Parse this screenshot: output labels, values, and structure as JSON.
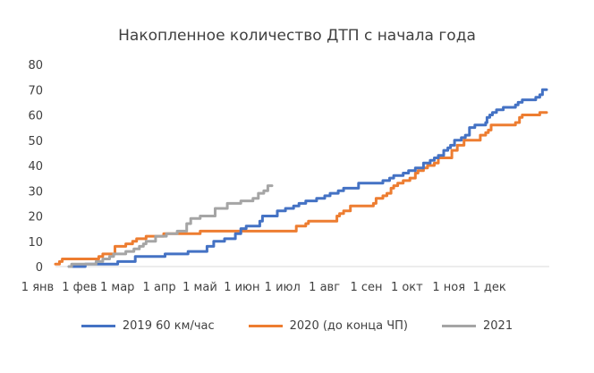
{
  "chart_data": {
    "type": "line",
    "title": "Накопленное количество ДТП с начала года",
    "xlabel": "",
    "ylabel": "",
    "ylim": [
      0,
      80
    ],
    "xlim": [
      0,
      365
    ],
    "y_ticks": [
      "0",
      "10",
      "20",
      "30",
      "40",
      "50",
      "60",
      "70",
      "80"
    ],
    "x_tick_labels": [
      "1 янв",
      "1 фев",
      "1 мар",
      "1 апр",
      "1 май",
      "1 июн",
      "1 июл",
      "1 авг",
      "1 сен",
      "1 окт",
      "1 ноя",
      "1 дек"
    ],
    "x_tick_days": [
      0,
      31,
      59,
      90,
      120,
      151,
      181,
      212,
      243,
      273,
      304,
      334
    ],
    "grid": false,
    "legend_position": "bottom",
    "series": [
      {
        "name": "2019 60 км/час",
        "color": "#4472C4",
        "points": [
          [
            10,
            0
          ],
          [
            22,
            1
          ],
          [
            43,
            1
          ],
          [
            46,
            2
          ],
          [
            59,
            4
          ],
          [
            78,
            4
          ],
          [
            81,
            5
          ],
          [
            96,
            5
          ],
          [
            98,
            6
          ],
          [
            110,
            6
          ],
          [
            112,
            8
          ],
          [
            117,
            10
          ],
          [
            125,
            11
          ],
          [
            133,
            13
          ],
          [
            137,
            15
          ],
          [
            141,
            16
          ],
          [
            150,
            16
          ],
          [
            151,
            18
          ],
          [
            153,
            20
          ],
          [
            162,
            20
          ],
          [
            164,
            22
          ],
          [
            170,
            23
          ],
          [
            176,
            24
          ],
          [
            180,
            25
          ],
          [
            185,
            26
          ],
          [
            193,
            27
          ],
          [
            199,
            28
          ],
          [
            203,
            29
          ],
          [
            209,
            30
          ],
          [
            213,
            31
          ],
          [
            222,
            31
          ],
          [
            224,
            33
          ],
          [
            239,
            33
          ],
          [
            242,
            34
          ],
          [
            247,
            35
          ],
          [
            250,
            36
          ],
          [
            257,
            37
          ],
          [
            261,
            38
          ],
          [
            266,
            39
          ],
          [
            272,
            41
          ],
          [
            277,
            42
          ],
          [
            280,
            43
          ],
          [
            283,
            44
          ],
          [
            287,
            46
          ],
          [
            290,
            47
          ],
          [
            292,
            48
          ],
          [
            295,
            50
          ],
          [
            300,
            51
          ],
          [
            303,
            52
          ],
          [
            306,
            55
          ],
          [
            310,
            56
          ],
          [
            318,
            57
          ],
          [
            319,
            59
          ],
          [
            321,
            60
          ],
          [
            323,
            61
          ],
          [
            326,
            62
          ],
          [
            331,
            63
          ],
          [
            337,
            63
          ],
          [
            340,
            64
          ],
          [
            342,
            65
          ],
          [
            345,
            66
          ],
          [
            355,
            67
          ],
          [
            358,
            68
          ],
          [
            360,
            70
          ],
          [
            363,
            70
          ]
        ]
      },
      {
        "name": "2020 (до конца ЧП)",
        "color": "#ED7D31",
        "points": [
          [
            0,
            1
          ],
          [
            3,
            2
          ],
          [
            5,
            3
          ],
          [
            28,
            3
          ],
          [
            32,
            4
          ],
          [
            35,
            5
          ],
          [
            42,
            5
          ],
          [
            44,
            8
          ],
          [
            50,
            8
          ],
          [
            52,
            9
          ],
          [
            57,
            10
          ],
          [
            60,
            11
          ],
          [
            65,
            11
          ],
          [
            67,
            12
          ],
          [
            78,
            12
          ],
          [
            80,
            13
          ],
          [
            105,
            13
          ],
          [
            107,
            14
          ],
          [
            175,
            14
          ],
          [
            178,
            16
          ],
          [
            185,
            17
          ],
          [
            187,
            18
          ],
          [
            205,
            18
          ],
          [
            208,
            20
          ],
          [
            210,
            21
          ],
          [
            213,
            22
          ],
          [
            218,
            24
          ],
          [
            233,
            24
          ],
          [
            235,
            25
          ],
          [
            237,
            27
          ],
          [
            242,
            28
          ],
          [
            245,
            29
          ],
          [
            248,
            31
          ],
          [
            250,
            32
          ],
          [
            253,
            33
          ],
          [
            257,
            34
          ],
          [
            262,
            35
          ],
          [
            266,
            37
          ],
          [
            268,
            38
          ],
          [
            272,
            39
          ],
          [
            275,
            40
          ],
          [
            280,
            41
          ],
          [
            283,
            43
          ],
          [
            291,
            43
          ],
          [
            293,
            46
          ],
          [
            297,
            48
          ],
          [
            302,
            50
          ],
          [
            311,
            50
          ],
          [
            314,
            52
          ],
          [
            318,
            53
          ],
          [
            320,
            54
          ],
          [
            322,
            56
          ],
          [
            337,
            56
          ],
          [
            340,
            57
          ],
          [
            343,
            59
          ],
          [
            345,
            60
          ],
          [
            356,
            60
          ],
          [
            358,
            61
          ],
          [
            363,
            61
          ]
        ]
      },
      {
        "name": "2021",
        "color": "#A5A5A5",
        "points": [
          [
            10,
            0
          ],
          [
            12,
            1
          ],
          [
            30,
            2
          ],
          [
            35,
            3
          ],
          [
            40,
            4
          ],
          [
            43,
            5
          ],
          [
            52,
            6
          ],
          [
            58,
            7
          ],
          [
            62,
            8
          ],
          [
            65,
            9
          ],
          [
            67,
            10
          ],
          [
            72,
            10
          ],
          [
            74,
            12
          ],
          [
            80,
            12
          ],
          [
            82,
            13
          ],
          [
            88,
            13
          ],
          [
            90,
            14
          ],
          [
            97,
            17
          ],
          [
            100,
            19
          ],
          [
            107,
            20
          ],
          [
            116,
            20
          ],
          [
            118,
            23
          ],
          [
            125,
            23
          ],
          [
            127,
            25
          ],
          [
            135,
            25
          ],
          [
            137,
            26
          ],
          [
            144,
            26
          ],
          [
            146,
            27
          ],
          [
            150,
            29
          ],
          [
            154,
            30
          ],
          [
            157,
            32
          ],
          [
            160,
            32
          ]
        ]
      }
    ]
  }
}
